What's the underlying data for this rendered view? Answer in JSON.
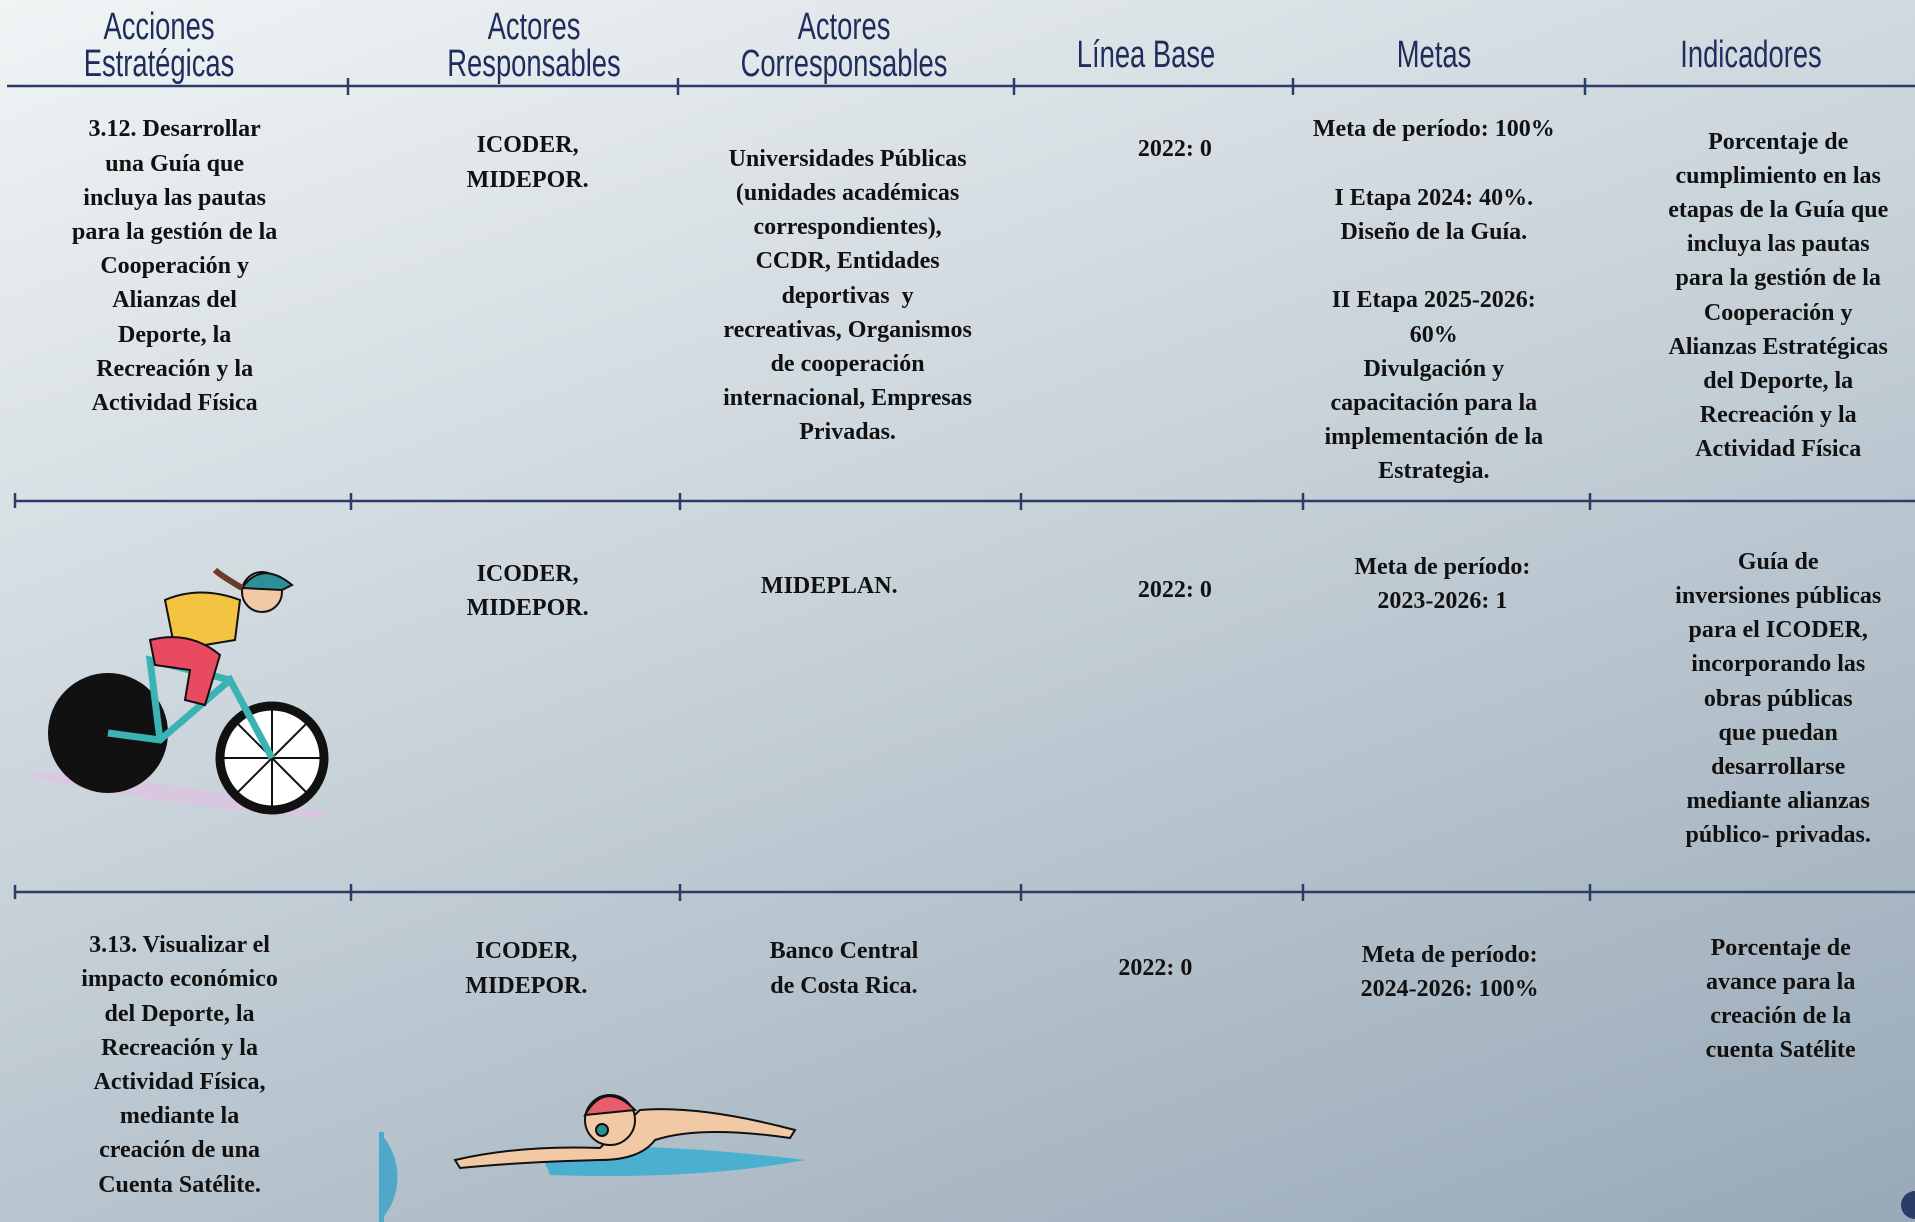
{
  "header": {
    "columns": [
      [
        "Acciones",
        "Estratégicas"
      ],
      [
        "Actores",
        "Responsables"
      ],
      [
        "Actores",
        "Corresponsables"
      ],
      [
        "Línea Base"
      ],
      [
        "Metas"
      ],
      [
        "Indicadores"
      ]
    ]
  },
  "rows": [
    {
      "accion": [
        [
          "3.12. Desarrollar",
          "una Guía que",
          "incluya las pautas",
          "para la gestión de la",
          "Cooperación y",
          "Alianzas del",
          "Deporte, la",
          "Recreación y la",
          "Actividad Física"
        ]
      ],
      "responsables": [
        [
          "ICODER,",
          "MIDEPOR."
        ]
      ],
      "corresponsables": [
        [
          "Universidades Públicas",
          "(unidades académicas",
          "correspondientes),",
          "CCDR, Entidades",
          "deportivas  y",
          "recreativas, Organismos",
          "de cooperación",
          "internacional, Empresas",
          "Privadas."
        ]
      ],
      "linea_base": [
        [
          "2022: 0"
        ]
      ],
      "metas": [
        [
          "Meta de período: 100%"
        ],
        [
          "I Etapa 2024: 40%.",
          "Diseño de la Guía."
        ],
        [
          "II Etapa 2025-2026:",
          "60%",
          "Divulgación y",
          "capacitación para la",
          "implementación de la",
          "Estrategia."
        ]
      ],
      "indicadores": [
        [
          "Porcentaje de",
          "cumplimiento en las",
          "etapas de la Guía que",
          "incluya las pautas",
          "para la gestión de la",
          "Cooperación y",
          "Alianzas Estratégicas",
          "del Deporte, la",
          "Recreación y la",
          "Actividad Física"
        ]
      ]
    },
    {
      "responsables": [
        [
          "ICODER,",
          "MIDEPOR."
        ]
      ],
      "corresponsables": [
        [
          "MIDEPLAN."
        ]
      ],
      "linea_base": [
        [
          "2022: 0"
        ]
      ],
      "metas": [
        [
          "Meta de período:",
          "2023-2026: 1"
        ]
      ],
      "indicadores": [
        [
          "Guía de",
          "inversiones públicas",
          "para el ICODER,",
          "incorporando las",
          "obras públicas",
          "que puedan",
          "desarrollarse",
          "mediante alianzas",
          "público- privadas."
        ]
      ]
    },
    {
      "accion": [
        [
          "3.13. Visualizar el",
          "impacto económico",
          "del Deporte, la",
          "Recreación y la",
          "Actividad Física,",
          "mediante la",
          "creación de una",
          "Cuenta Satélite."
        ]
      ],
      "responsables": [
        [
          "ICODER,",
          "MIDEPOR."
        ]
      ],
      "corresponsables": [
        [
          "Banco Central",
          "de Costa Rica."
        ]
      ],
      "linea_base": [
        [
          "2022: 0"
        ]
      ],
      "metas": [
        [
          "Meta de período:",
          "2024-2026: 100%"
        ]
      ],
      "indicadores": [
        [
          "Porcentaje de",
          "avance para la",
          "creación de la",
          "cuenta Satélite"
        ]
      ]
    }
  ]
}
